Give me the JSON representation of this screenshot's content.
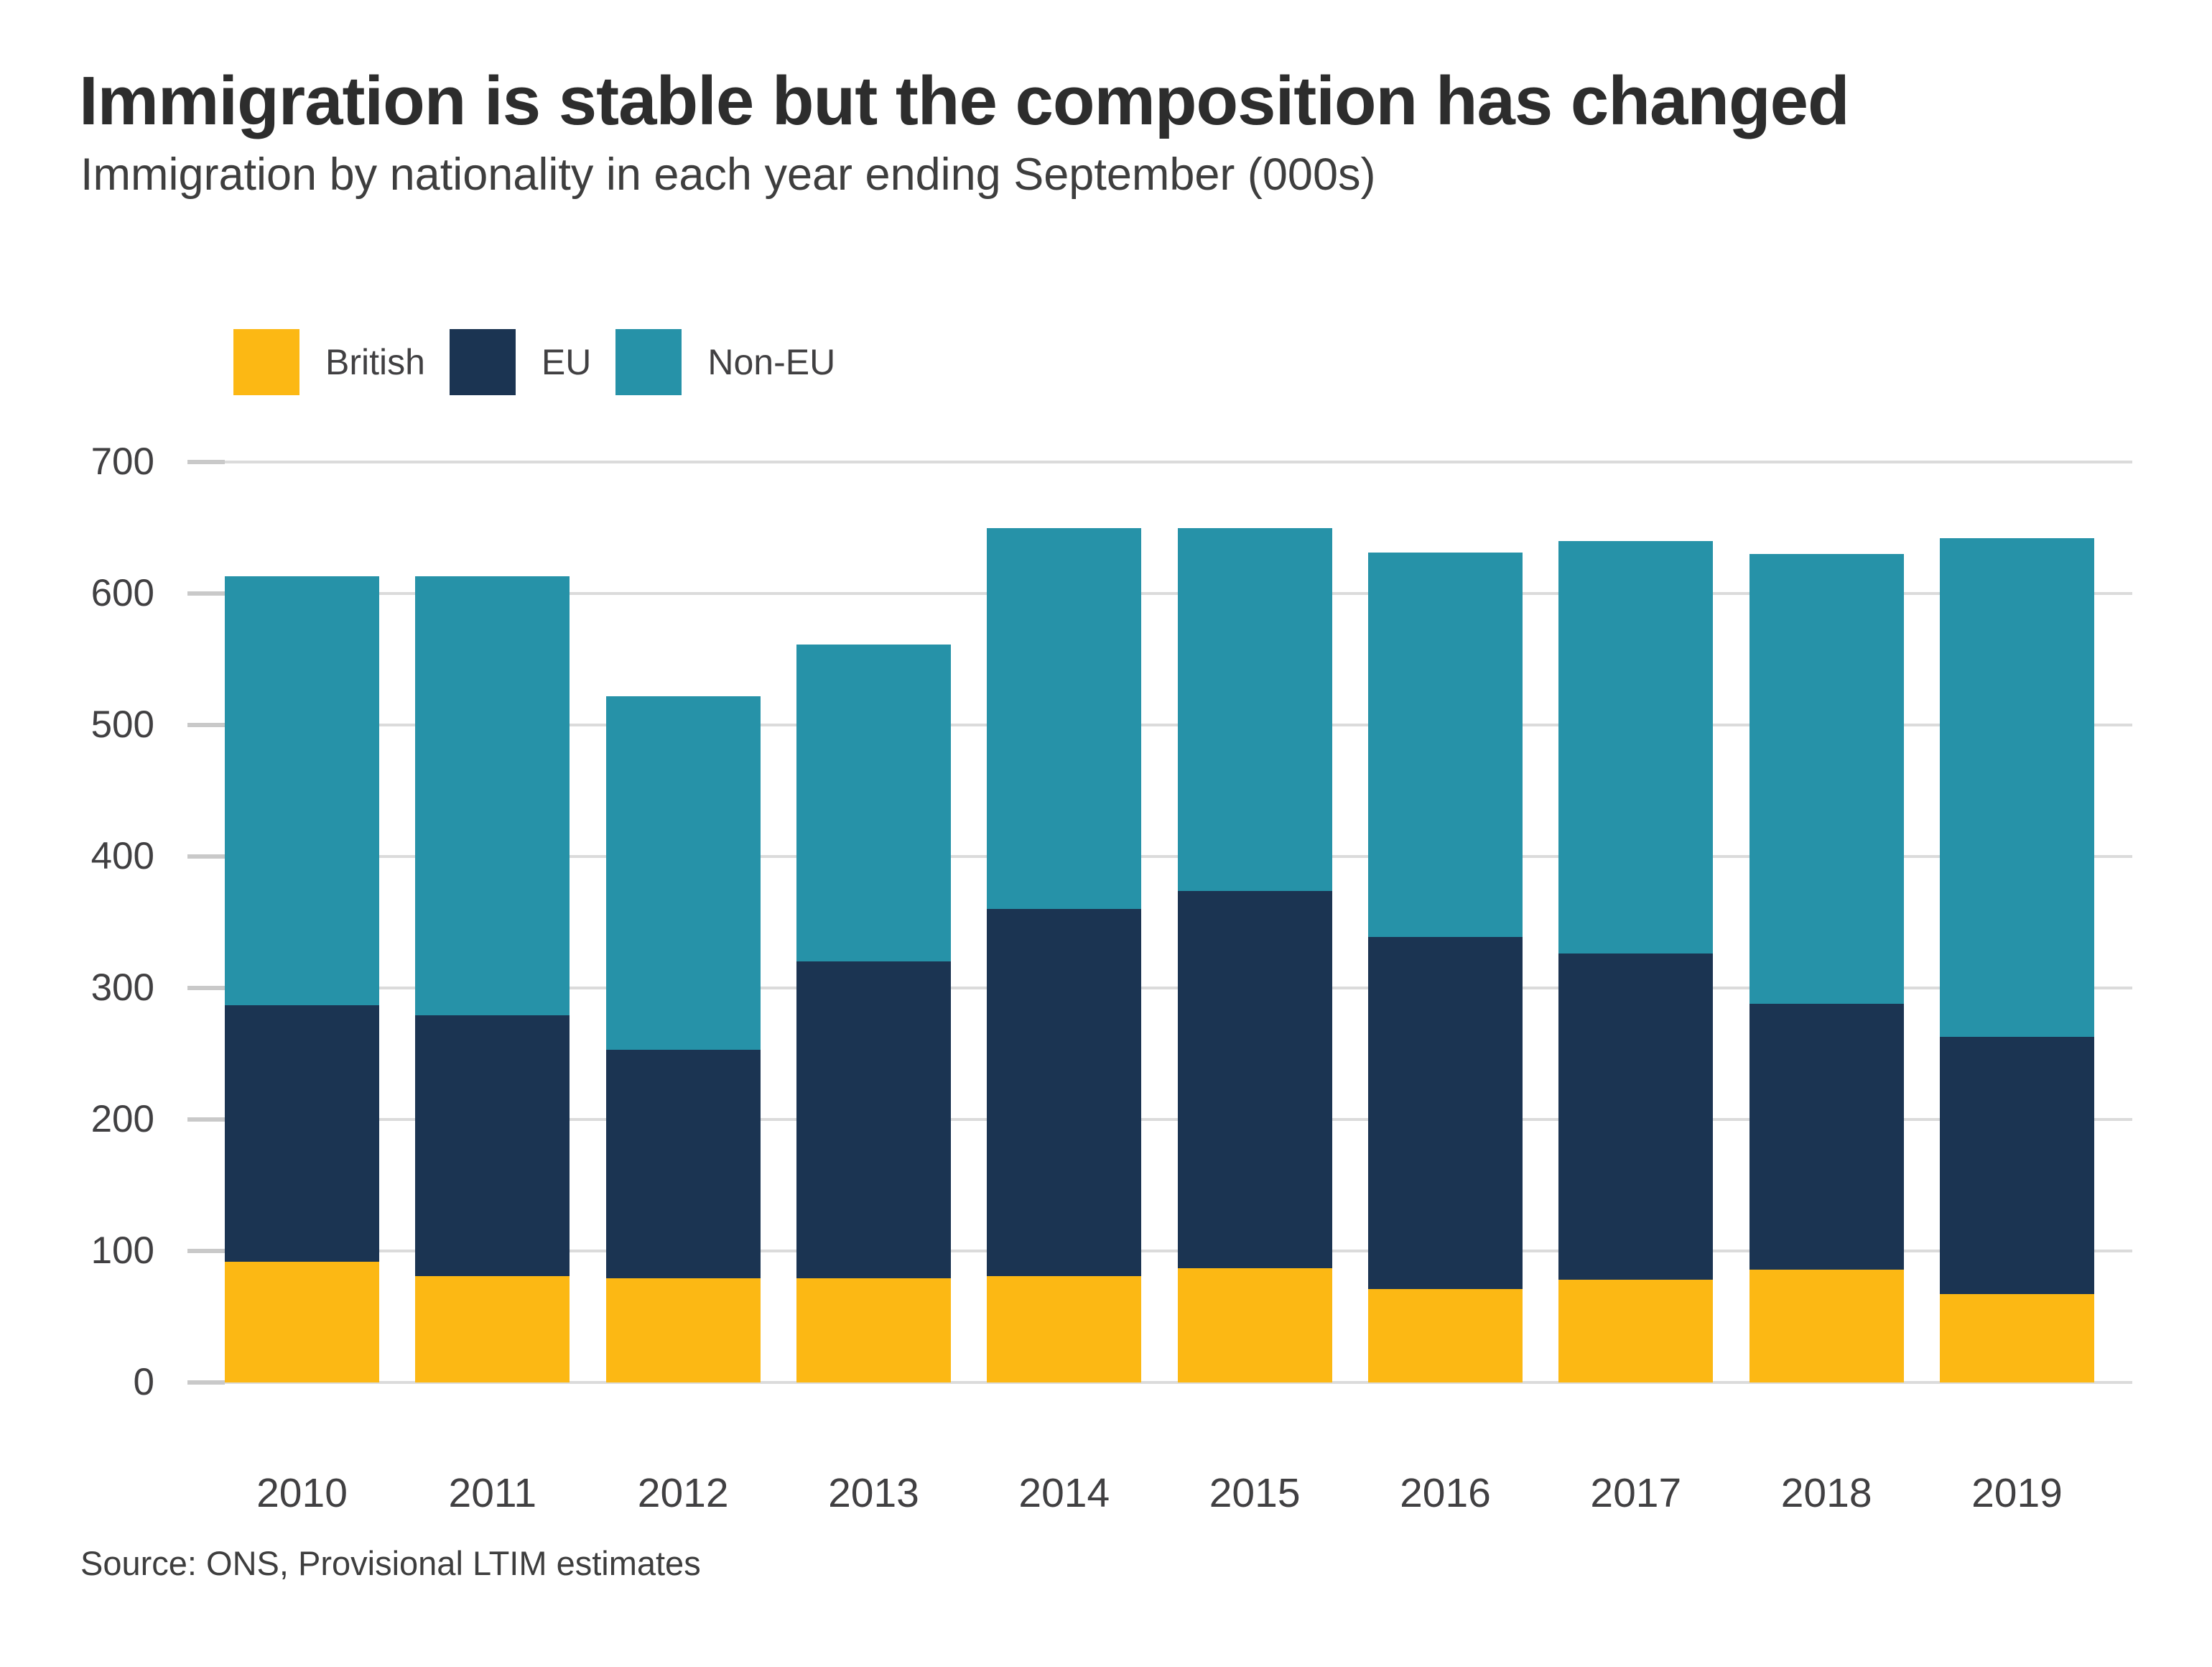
{
  "title": "Immigration is stable but the composition has changed",
  "subtitle": "Immigration by nationality in each year ending September (000s)",
  "source": "Source: ONS, Provisional LTIM estimates",
  "legend": {
    "items": [
      {
        "label": "British",
        "color": "#FCB814"
      },
      {
        "label": "EU",
        "color": "#1B3452"
      },
      {
        "label": "Non-EU",
        "color": "#2692A8"
      }
    ]
  },
  "colors": {
    "british": "#FCB814",
    "eu": "#1B3452",
    "non_eu": "#2692A8",
    "gridline": "#DBDBDB",
    "tick": "#C9C9C9",
    "title_text": "#2D2D2D",
    "body_text": "#3E3E3E",
    "axis_text": "#414042"
  },
  "chart_data": {
    "type": "bar",
    "stacked": true,
    "title": "Immigration is stable but the composition has changed",
    "subtitle": "Immigration by nationality in each year ending September (000s)",
    "categories": [
      "2010",
      "2011",
      "2012",
      "2013",
      "2014",
      "2015",
      "2016",
      "2017",
      "2018",
      "2019"
    ],
    "series": [
      {
        "name": "British",
        "color": "#FCB814",
        "values": [
          92,
          81,
          79,
          79,
          81,
          87,
          71,
          78,
          86,
          67
        ]
      },
      {
        "name": "EU",
        "color": "#1B3452",
        "values": [
          195,
          198,
          174,
          241,
          279,
          287,
          268,
          248,
          202,
          196
        ]
      },
      {
        "name": "Non-EU",
        "color": "#2692A8",
        "values": [
          326,
          334,
          269,
          241,
          290,
          276,
          292,
          314,
          342,
          379
        ]
      }
    ],
    "totals": [
      613,
      613,
      522,
      561,
      650,
      650,
      631,
      640,
      630,
      642
    ],
    "xlabel": "",
    "ylabel": "",
    "ylim": [
      0,
      700
    ],
    "ytick_step": 100,
    "grid": "horizontal",
    "legend_position": "top-left",
    "source": "Source: ONS, Provisional LTIM estimates"
  }
}
